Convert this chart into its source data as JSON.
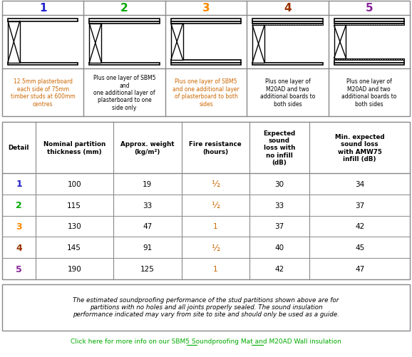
{
  "title_numbers": [
    "1",
    "2",
    "3",
    "4",
    "5"
  ],
  "title_colors": [
    "#2222cc",
    "#00aa00",
    "#ff8800",
    "#993300",
    "#882299"
  ],
  "descriptions": [
    "12.5mm plasterboard\neach side of 75mm\ntimber studs at 600mm\ncentres",
    "Plus one layer of SBM5\nand\none additional layer of\nplasterboard to one\nside only",
    "Plus one layer of SBM5\nand one additional layer\nof plasterboard to both\nsides",
    "Plus one layer of\nM20AD and two\nadditional boards to\nboth sides",
    "Plus one layer of\nM20AD and two\nadditional boards to\nboth sides"
  ],
  "desc_colors": [
    "#cc6600",
    "#000000",
    "#cc6600",
    "#000000",
    "#000000"
  ],
  "col_headers": [
    "Detail",
    "Nominal partition\nthickness (mm)",
    "Approx. weight\n(kg/m²)",
    "Fire resistance\n(hours)",
    "Expected\nsound\nloss with\nno infill\n(dB)",
    "Min. expected\nsound loss\nwith AMW75\ninfill (dB)"
  ],
  "row_labels": [
    "1",
    "2",
    "3",
    "4",
    "5"
  ],
  "row_label_colors": [
    "#2222cc",
    "#00aa00",
    "#ff8800",
    "#993300",
    "#882299"
  ],
  "thickness": [
    "100",
    "115",
    "130",
    "145",
    "190"
  ],
  "weight": [
    "19",
    "33",
    "47",
    "91",
    "125"
  ],
  "fire_resistance": [
    "1/2",
    "1/2",
    "1",
    "1/2",
    "1"
  ],
  "sound_loss": [
    "30",
    "33",
    "37",
    "40",
    "42"
  ],
  "min_sound_loss": [
    "34",
    "37",
    "42",
    "45",
    "47"
  ],
  "footnote": "The estimated soundproofing performance of the stud partitions shown above are for\npartitions with no holes and all joints properly sealed. The sound insulation\nperformance indicated may vary from site to site and should only be used as a guide.",
  "link_text": "Click here for more info on our SBM5 Soundproofing Mat and M20AD Wall insulation",
  "bg_color": "#ffffff",
  "border_color": "#888888",
  "fire_color": "#cc6600"
}
